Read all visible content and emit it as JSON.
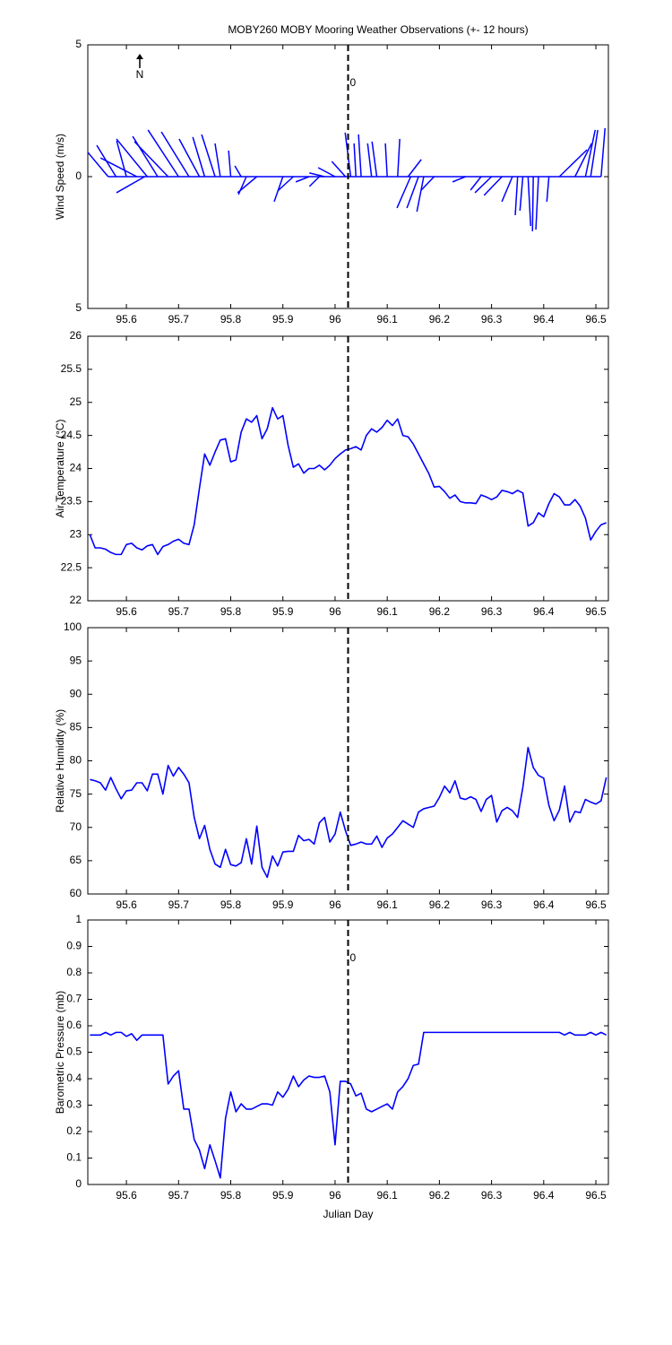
{
  "chart_data": [
    {
      "type": "stick",
      "title": "MOBY260 MOBY Mooring Weather Observations (+- 12 hours)",
      "y_label": "Wind Speed (m/s)",
      "north_label": "N",
      "annotation": "0",
      "annotation_color": "#cc0000",
      "color": "#0000ff",
      "vline": 96.025,
      "x": [
        95.565,
        95.58,
        95.6,
        95.62,
        95.635,
        95.64,
        95.66,
        95.68,
        95.7,
        95.72,
        95.74,
        95.75,
        95.77,
        95.78,
        95.8,
        95.82,
        95.83,
        95.85,
        95.9,
        95.92,
        95.95,
        95.97,
        95.98,
        96.0,
        96.02,
        96.03,
        96.04,
        96.05,
        96.07,
        96.08,
        96.1,
        96.12,
        96.14,
        96.145,
        96.16,
        96.17,
        96.19,
        96.25,
        96.28,
        96.3,
        96.32,
        96.34,
        96.35,
        96.36,
        96.37,
        96.38,
        96.39,
        96.41,
        96.43,
        96.46,
        96.48,
        96.49,
        96.51
      ],
      "u": [
        -0.77,
        -0.73,
        -0.37,
        -1.38,
        -1.07,
        -1.17,
        -0.95,
        -1.28,
        -1.16,
        -1.05,
        -0.77,
        -0.45,
        -0.51,
        -0.2,
        -0.08,
        -0.24,
        -0.3,
        -0.73,
        -0.33,
        -0.59,
        -0.5,
        -0.38,
        -0.58,
        -0.64,
        -0.52,
        -0.21,
        -0.07,
        -0.1,
        -0.15,
        -0.18,
        -0.07,
        0.08,
        0.5,
        -0.52,
        -0.44,
        -0.26,
        -0.49,
        -0.49,
        -0.4,
        -0.63,
        -0.68,
        -0.4,
        -0.09,
        -0.11,
        0.1,
        -0.03,
        -0.1,
        -0.08,
        1.05,
        0.63,
        0.37,
        0.27,
        0.15
      ],
      "v": [
        0.92,
        1.19,
        1.36,
        0.71,
        -0.61,
        1.43,
        1.53,
        1.33,
        1.77,
        1.7,
        1.43,
        1.5,
        1.6,
        1.26,
        0.99,
        0.41,
        -0.68,
        -0.61,
        -0.95,
        -0.54,
        -0.2,
        -0.37,
        0.14,
        0.34,
        0.58,
        1.67,
        1.26,
        1.6,
        1.26,
        1.33,
        1.26,
        1.43,
        0.65,
        -1.19,
        -1.19,
        -1.33,
        -0.51,
        -0.2,
        -0.51,
        -0.61,
        -0.71,
        -0.95,
        -1.46,
        -1.29,
        -1.87,
        -2.07,
        -2.01,
        -0.95,
        1.02,
        1.26,
        1.77,
        1.77,
        1.84
      ],
      "xlim": [
        95.526,
        96.524
      ],
      "xticks": [
        95.6,
        95.7,
        95.8,
        95.9,
        96,
        96.1,
        96.2,
        96.3,
        96.4,
        96.5
      ],
      "ylim": [
        -5,
        5
      ],
      "yticks": [
        {
          "value": -5,
          "label": "5"
        },
        0,
        5
      ]
    },
    {
      "type": "line",
      "y_label": "Air Temperature (°C)",
      "color": "#0000ff",
      "vline": 96.025,
      "x": [
        95.53,
        95.54,
        95.55,
        95.56,
        95.57,
        95.58,
        95.59,
        95.6,
        95.61,
        95.62,
        95.63,
        95.64,
        95.65,
        95.66,
        95.67,
        95.68,
        95.69,
        95.7,
        95.71,
        95.72,
        95.73,
        95.74,
        95.75,
        95.76,
        95.77,
        95.78,
        95.79,
        95.8,
        95.81,
        95.82,
        95.83,
        95.84,
        95.85,
        95.86,
        95.87,
        95.88,
        95.89,
        95.9,
        95.91,
        95.92,
        95.93,
        95.94,
        95.95,
        95.96,
        95.97,
        95.98,
        95.99,
        96.0,
        96.01,
        96.02,
        96.03,
        96.04,
        96.05,
        96.06,
        96.07,
        96.08,
        96.09,
        96.1,
        96.11,
        96.12,
        96.13,
        96.14,
        96.15,
        96.16,
        96.17,
        96.18,
        96.19,
        96.2,
        96.21,
        96.22,
        96.23,
        96.24,
        96.25,
        96.26,
        96.27,
        96.28,
        96.29,
        96.3,
        96.31,
        96.32,
        96.33,
        96.34,
        96.35,
        96.36,
        96.37,
        96.38,
        96.39,
        96.4,
        96.41,
        96.42,
        96.43,
        96.44,
        96.45,
        96.46,
        96.47,
        96.48,
        96.49,
        96.5,
        96.51,
        96.52
      ],
      "values": [
        23.0,
        22.8,
        22.8,
        22.78,
        22.73,
        22.7,
        22.7,
        22.85,
        22.87,
        22.8,
        22.77,
        22.83,
        22.85,
        22.7,
        22.82,
        22.85,
        22.9,
        22.93,
        22.87,
        22.85,
        23.15,
        23.7,
        24.22,
        24.05,
        24.25,
        24.43,
        24.45,
        24.1,
        24.13,
        24.55,
        24.75,
        24.7,
        24.8,
        24.45,
        24.6,
        24.92,
        24.75,
        24.8,
        24.35,
        24.02,
        24.07,
        23.93,
        24.0,
        24.0,
        24.05,
        23.98,
        24.05,
        24.15,
        24.22,
        24.28,
        24.3,
        24.33,
        24.28,
        24.5,
        24.6,
        24.55,
        24.62,
        24.73,
        24.65,
        24.75,
        24.5,
        24.48,
        24.37,
        24.22,
        24.07,
        23.92,
        23.72,
        23.73,
        23.65,
        23.55,
        23.6,
        23.5,
        23.48,
        23.48,
        23.47,
        23.6,
        23.57,
        23.53,
        23.57,
        23.67,
        23.65,
        23.62,
        23.67,
        23.63,
        23.13,
        23.18,
        23.33,
        23.27,
        23.47,
        23.62,
        23.57,
        23.45,
        23.45,
        23.53,
        23.43,
        23.25,
        22.92,
        23.05,
        23.15,
        23.18
      ],
      "xlim": [
        95.526,
        96.524
      ],
      "xticks": [
        95.6,
        95.7,
        95.8,
        95.9,
        96,
        96.1,
        96.2,
        96.3,
        96.4,
        96.5
      ],
      "ylim": [
        22,
        26
      ],
      "yticks": [
        22,
        22.5,
        23,
        23.5,
        24,
        24.5,
        25,
        25.5,
        26
      ]
    },
    {
      "type": "line",
      "y_label": "Relative Humidity (%)",
      "color": "#0000ff",
      "vline": 96.025,
      "x": [
        95.53,
        95.54,
        95.55,
        95.56,
        95.57,
        95.58,
        95.59,
        95.6,
        95.61,
        95.62,
        95.63,
        95.64,
        95.65,
        95.66,
        95.67,
        95.68,
        95.69,
        95.7,
        95.71,
        95.72,
        95.73,
        95.74,
        95.75,
        95.76,
        95.77,
        95.78,
        95.79,
        95.8,
        95.81,
        95.82,
        95.83,
        95.84,
        95.85,
        95.86,
        95.87,
        95.88,
        95.89,
        95.9,
        95.91,
        95.92,
        95.93,
        95.94,
        95.95,
        95.96,
        95.97,
        95.98,
        95.99,
        96.0,
        96.01,
        96.02,
        96.03,
        96.04,
        96.05,
        96.06,
        96.07,
        96.08,
        96.09,
        96.1,
        96.11,
        96.12,
        96.13,
        96.14,
        96.15,
        96.16,
        96.17,
        96.18,
        96.19,
        96.2,
        96.21,
        96.22,
        96.23,
        96.24,
        96.25,
        96.26,
        96.27,
        96.28,
        96.29,
        96.3,
        96.31,
        96.32,
        96.33,
        96.34,
        96.35,
        96.36,
        96.37,
        96.38,
        96.39,
        96.4,
        96.41,
        96.42,
        96.43,
        96.44,
        96.45,
        96.46,
        96.47,
        96.48,
        96.49,
        96.5,
        96.51,
        96.52
      ],
      "values": [
        77.2,
        77,
        76.7,
        75.6,
        77.5,
        75.8,
        74.3,
        75.5,
        75.6,
        76.7,
        76.7,
        75.5,
        78,
        78,
        75,
        79.3,
        77.7,
        79,
        78,
        76.7,
        71.5,
        68.3,
        70.3,
        66.7,
        64.5,
        64,
        66.7,
        64.4,
        64.2,
        64.7,
        68.3,
        64.5,
        70.2,
        64,
        62.5,
        65.7,
        64.2,
        66.3,
        66.4,
        66.4,
        68.8,
        68,
        68.2,
        67.5,
        70.7,
        71.5,
        67.8,
        69,
        72.3,
        69.5,
        67.3,
        67.5,
        67.8,
        67.5,
        67.5,
        68.7,
        67,
        68.4,
        69,
        70,
        71,
        70.5,
        70,
        72.3,
        72.8,
        73,
        73.2,
        74.5,
        76.2,
        75.2,
        77,
        74.4,
        74.2,
        74.6,
        74.2,
        72.4,
        74.2,
        74.8,
        70.8,
        72.5,
        73,
        72.5,
        71.5,
        76,
        82,
        79,
        77.8,
        77.4,
        73.3,
        71,
        72.6,
        76.2,
        70.8,
        72.4,
        72.2,
        74.2,
        73.8,
        73.5,
        74,
        77.5
      ],
      "xlim": [
        95.526,
        96.524
      ],
      "xticks": [
        95.6,
        95.7,
        95.8,
        95.9,
        96,
        96.1,
        96.2,
        96.3,
        96.4,
        96.5
      ],
      "ylim": [
        60,
        100
      ],
      "yticks": [
        60,
        65,
        70,
        75,
        80,
        85,
        90,
        95,
        100
      ]
    },
    {
      "type": "line",
      "y_label": "Barometric Pressure (mb)",
      "x_label": "Julian Day",
      "annotation": "0",
      "annotation_color": "#cc0000",
      "color": "#0000ff",
      "vline": 96.025,
      "x": [
        95.53,
        95.54,
        95.55,
        95.56,
        95.57,
        95.58,
        95.59,
        95.6,
        95.61,
        95.62,
        95.63,
        95.64,
        95.65,
        95.66,
        95.67,
        95.68,
        95.69,
        95.7,
        95.71,
        95.72,
        95.73,
        95.74,
        95.75,
        95.76,
        95.77,
        95.78,
        95.79,
        95.8,
        95.81,
        95.82,
        95.83,
        95.84,
        95.85,
        95.86,
        95.87,
        95.88,
        95.89,
        95.9,
        95.91,
        95.92,
        95.93,
        95.94,
        95.95,
        95.96,
        95.97,
        95.98,
        95.99,
        96.0,
        96.01,
        96.02,
        96.03,
        96.04,
        96.05,
        96.06,
        96.07,
        96.08,
        96.09,
        96.1,
        96.11,
        96.12,
        96.13,
        96.14,
        96.15,
        96.16,
        96.17,
        96.18,
        96.19,
        96.2,
        96.21,
        96.22,
        96.23,
        96.24,
        96.25,
        96.26,
        96.27,
        96.28,
        96.29,
        96.3,
        96.31,
        96.32,
        96.33,
        96.34,
        96.35,
        96.36,
        96.37,
        96.38,
        96.39,
        96.4,
        96.41,
        96.42,
        96.43,
        96.44,
        96.45,
        96.46,
        96.47,
        96.48,
        96.49,
        96.5,
        96.51,
        96.52
      ],
      "values": [
        0.565,
        0.565,
        0.565,
        0.575,
        0.565,
        0.575,
        0.575,
        0.56,
        0.57,
        0.545,
        0.565,
        0.565,
        0.565,
        0.565,
        0.565,
        0.38,
        0.41,
        0.43,
        0.285,
        0.285,
        0.17,
        0.13,
        0.06,
        0.15,
        0.09,
        0.025,
        0.25,
        0.35,
        0.275,
        0.305,
        0.285,
        0.285,
        0.295,
        0.305,
        0.305,
        0.3,
        0.35,
        0.33,
        0.36,
        0.41,
        0.37,
        0.395,
        0.41,
        0.405,
        0.405,
        0.41,
        0.35,
        0.15,
        0.39,
        0.39,
        0.38,
        0.335,
        0.345,
        0.285,
        0.275,
        0.285,
        0.295,
        0.305,
        0.285,
        0.35,
        0.37,
        0.4,
        0.45,
        0.455,
        0.575,
        0.575,
        0.575,
        0.575,
        0.575,
        0.575,
        0.575,
        0.575,
        0.575,
        0.575,
        0.575,
        0.575,
        0.575,
        0.575,
        0.575,
        0.575,
        0.575,
        0.575,
        0.575,
        0.575,
        0.575,
        0.575,
        0.575,
        0.575,
        0.575,
        0.575,
        0.575,
        0.565,
        0.575,
        0.565,
        0.565,
        0.565,
        0.575,
        0.565,
        0.575,
        0.565
      ],
      "xlim": [
        95.526,
        96.524
      ],
      "xticks": [
        95.6,
        95.7,
        95.8,
        95.9,
        96,
        96.1,
        96.2,
        96.3,
        96.4,
        96.5
      ],
      "ylim": [
        0,
        1
      ],
      "yticks": [
        0,
        0.1,
        0.2,
        0.3,
        0.4,
        0.5,
        0.6,
        0.7,
        0.8,
        0.9,
        1
      ]
    }
  ]
}
